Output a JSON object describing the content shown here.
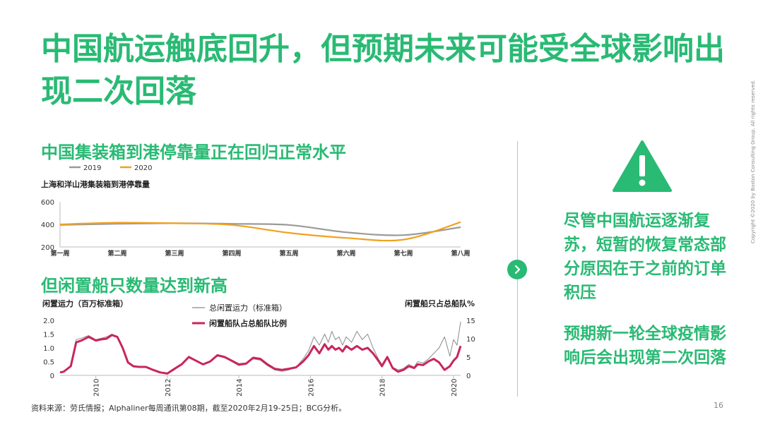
{
  "title": "中国航运触底回升，但预期未来可能受全球影响出现二次回落",
  "section1": {
    "heading": "中国集装箱到港停靠量正在回归正常水平"
  },
  "section2": {
    "heading": "但闲置船只数量达到新高"
  },
  "side_text": {
    "para1": "尽管中国航运逐渐复苏，短暂的恢复常态部分原因在于之前的订单积压",
    "para2": "预期新一轮全球疫情影响后会出现第二次回落"
  },
  "icons": {
    "warning": "warning-icon",
    "arrow": "chevron-right-icon"
  },
  "colors": {
    "brand_green": "#29ba74",
    "series_2019": "#9a9a9a",
    "series_2020": "#f0a21f",
    "idle_capacity": "#8a8a8a",
    "idle_ratio": "#c8255f"
  },
  "source": "资料来源：劳氏情报；Alphaliner每周通讯第08期，截至2020年2月19-25日；BCG分析。",
  "page_number": "16",
  "copyright": "Copyright ©2020 by Boston Consulting Group. All rights reserved.",
  "chart_data": [
    {
      "type": "line",
      "title": "上海和洋山港集装箱到港停靠量",
      "categories": [
        "第一周",
        "第二周",
        "第三周",
        "第四周",
        "第五周",
        "第六周",
        "第七周",
        "第八周"
      ],
      "yticks": [
        "200",
        "400",
        "600"
      ],
      "ylim": [
        200,
        600
      ],
      "legend_position": "top-left",
      "grid": false,
      "series": [
        {
          "name": "2019",
          "color": "#9a9a9a",
          "values": [
            395,
            405,
            410,
            405,
            395,
            330,
            305,
            375
          ]
        },
        {
          "name": "2020",
          "color": "#f0a21f",
          "values": [
            400,
            415,
            410,
            395,
            325,
            280,
            265,
            420
          ]
        }
      ]
    },
    {
      "type": "line",
      "ylabel_left": "闲置运力（百万标准箱）",
      "ylabel_right": "闲置船只占总船队%",
      "yticks_left": [
        "0",
        "0.5",
        "1.0",
        "1.5",
        "2.0"
      ],
      "yticks_right": [
        "0",
        "5",
        "10",
        "15"
      ],
      "ylim_left": [
        0,
        2
      ],
      "ylim_right": [
        0,
        15
      ],
      "xticks": [
        "2010",
        "2012",
        "2014",
        "2016",
        "2018",
        "2020"
      ],
      "xlim": [
        2009,
        2020.2
      ],
      "legend_position": "top-center",
      "grid": false,
      "series": [
        {
          "name": "总闲置运力（标准箱）",
          "axis": "left",
          "color": "#8a8a8a",
          "x": [
            2009.0,
            2009.1,
            2009.3,
            2009.45,
            2009.6,
            2009.8,
            2010.0,
            2010.15,
            2010.3,
            2010.45,
            2010.6,
            2010.75,
            2010.9,
            2011.05,
            2011.2,
            2011.4,
            2011.6,
            2011.8,
            2012.0,
            2012.2,
            2012.4,
            2012.6,
            2012.8,
            2013.0,
            2013.2,
            2013.4,
            2013.6,
            2013.8,
            2014.0,
            2014.2,
            2014.4,
            2014.6,
            2014.8,
            2015.0,
            2015.2,
            2015.4,
            2015.6,
            2015.8,
            2015.95,
            2016.1,
            2016.25,
            2016.4,
            2016.5,
            2016.6,
            2016.7,
            2016.8,
            2016.9,
            2017.0,
            2017.15,
            2017.3,
            2017.45,
            2017.6,
            2017.75,
            2017.9,
            2018.0,
            2018.15,
            2018.3,
            2018.45,
            2018.6,
            2018.75,
            2018.9,
            2019.0,
            2019.15,
            2019.3,
            2019.45,
            2019.6,
            2019.75,
            2019.9,
            2020.0,
            2020.1,
            2020.2
          ],
          "values": [
            0.1,
            0.15,
            0.35,
            1.3,
            1.35,
            1.45,
            1.3,
            1.35,
            1.4,
            1.5,
            1.4,
            1.0,
            0.45,
            0.3,
            0.3,
            0.3,
            0.2,
            0.1,
            0.05,
            0.2,
            0.4,
            0.7,
            0.55,
            0.4,
            0.5,
            0.7,
            0.65,
            0.5,
            0.35,
            0.4,
            0.6,
            0.55,
            0.35,
            0.2,
            0.15,
            0.2,
            0.3,
            0.6,
            0.9,
            1.4,
            1.1,
            1.5,
            1.2,
            1.6,
            1.3,
            1.4,
            1.1,
            1.4,
            1.2,
            1.6,
            1.3,
            1.5,
            1.0,
            0.6,
            0.4,
            0.7,
            0.3,
            0.2,
            0.25,
            0.4,
            0.3,
            0.5,
            0.45,
            0.6,
            0.8,
            1.0,
            1.4,
            0.7,
            1.3,
            1.1,
            1.95
          ]
        },
        {
          "name": "闲置船队占总船队比例",
          "axis": "right",
          "color": "#c8255f",
          "x": [
            2009.0,
            2009.1,
            2009.3,
            2009.45,
            2009.6,
            2009.8,
            2010.0,
            2010.15,
            2010.3,
            2010.45,
            2010.6,
            2010.75,
            2010.9,
            2011.05,
            2011.2,
            2011.4,
            2011.6,
            2011.8,
            2012.0,
            2012.2,
            2012.4,
            2012.6,
            2012.8,
            2013.0,
            2013.2,
            2013.4,
            2013.6,
            2013.8,
            2014.0,
            2014.2,
            2014.4,
            2014.6,
            2014.8,
            2015.0,
            2015.2,
            2015.4,
            2015.6,
            2015.8,
            2015.95,
            2016.1,
            2016.25,
            2016.4,
            2016.5,
            2016.6,
            2016.7,
            2016.8,
            2016.9,
            2017.0,
            2017.15,
            2017.3,
            2017.45,
            2017.6,
            2017.75,
            2017.9,
            2018.0,
            2018.15,
            2018.3,
            2018.45,
            2018.6,
            2018.75,
            2018.9,
            2019.0,
            2019.15,
            2019.3,
            2019.45,
            2019.6,
            2019.75,
            2019.9,
            2020.0,
            2020.1,
            2020.2
          ],
          "values": [
            0.8,
            1.0,
            2.5,
            9.0,
            9.5,
            10.5,
            9.5,
            9.8,
            10.0,
            11.0,
            10.5,
            7.5,
            3.5,
            2.5,
            2.3,
            2.3,
            1.5,
            0.8,
            0.5,
            1.8,
            3.0,
            5.0,
            4.0,
            3.0,
            3.8,
            5.5,
            5.0,
            4.0,
            3.0,
            3.2,
            4.8,
            4.5,
            3.0,
            1.8,
            1.5,
            1.8,
            2.2,
            3.8,
            5.5,
            8.0,
            6.0,
            8.5,
            7.0,
            8.0,
            7.0,
            7.5,
            6.5,
            8.0,
            7.0,
            8.0,
            7.0,
            7.5,
            6.0,
            4.0,
            2.5,
            5.0,
            2.0,
            1.0,
            1.5,
            2.5,
            2.0,
            3.0,
            2.8,
            3.8,
            4.5,
            3.5,
            1.5,
            2.5,
            4.0,
            5.0,
            8.0
          ]
        }
      ]
    }
  ]
}
